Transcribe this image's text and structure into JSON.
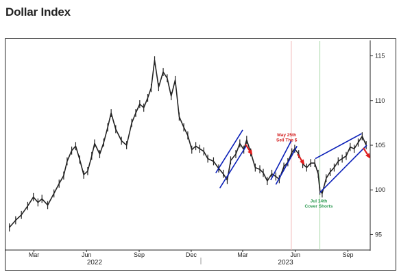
{
  "page": {
    "title": "Dollar Index"
  },
  "chart_data": {
    "type": "line",
    "title": "Dollar Index",
    "xlabel": "",
    "ylabel": "",
    "ylim": [
      93.5,
      116.5
    ],
    "xlim": [
      "2022-01-15",
      "2023-10-10"
    ],
    "yticks": [
      95,
      100,
      105,
      110,
      115
    ],
    "xticks": [
      {
        "date": "2022-03-01",
        "label": "Mar"
      },
      {
        "date": "2022-06-01",
        "label": "Jun"
      },
      {
        "date": "2022-09-01",
        "label": "Sep"
      },
      {
        "date": "2022-12-01",
        "label": "Dec"
      },
      {
        "date": "2023-03-01",
        "label": "Mar"
      },
      {
        "date": "2023-06-01",
        "label": "Jun"
      },
      {
        "date": "2023-09-01",
        "label": "Sep"
      }
    ],
    "year_labels": [
      {
        "date": "2022-06-15",
        "label": "2022"
      },
      {
        "date": "2023-05-15",
        "label": "2023"
      }
    ],
    "grid": false,
    "axis_side": "right",
    "series": [
      {
        "color": "#222222",
        "points": [
          [
            "2022-01-17",
            95.8
          ],
          [
            "2022-01-28",
            96.6
          ],
          [
            "2022-02-07",
            97.2
          ],
          [
            "2022-02-18",
            98.2
          ],
          [
            "2022-02-28",
            99.2
          ],
          [
            "2022-03-08",
            98.6
          ],
          [
            "2022-03-15",
            99.0
          ],
          [
            "2022-03-25",
            98.3
          ],
          [
            "2022-04-05",
            99.6
          ],
          [
            "2022-04-14",
            100.7
          ],
          [
            "2022-04-22",
            101.6
          ],
          [
            "2022-04-28",
            103.2
          ],
          [
            "2022-05-06",
            104.4
          ],
          [
            "2022-05-13",
            104.9
          ],
          [
            "2022-05-20",
            103.4
          ],
          [
            "2022-05-27",
            101.7
          ],
          [
            "2022-06-03",
            102.1
          ],
          [
            "2022-06-10",
            103.8
          ],
          [
            "2022-06-15",
            105.2
          ],
          [
            "2022-06-24",
            104.0
          ],
          [
            "2022-07-01",
            105.3
          ],
          [
            "2022-07-08",
            107.0
          ],
          [
            "2022-07-14",
            108.6
          ],
          [
            "2022-07-22",
            106.8
          ],
          [
            "2022-08-01",
            105.5
          ],
          [
            "2022-08-10",
            105.0
          ],
          [
            "2022-08-19",
            107.5
          ],
          [
            "2022-08-26",
            108.6
          ],
          [
            "2022-09-02",
            109.6
          ],
          [
            "2022-09-09",
            109.2
          ],
          [
            "2022-09-16",
            110.3
          ],
          [
            "2022-09-22",
            111.4
          ],
          [
            "2022-09-28",
            114.5
          ],
          [
            "2022-10-05",
            111.5
          ],
          [
            "2022-10-13",
            113.2
          ],
          [
            "2022-10-20",
            112.5
          ],
          [
            "2022-10-27",
            110.5
          ],
          [
            "2022-11-03",
            112.3
          ],
          [
            "2022-11-10",
            108.2
          ],
          [
            "2022-11-18",
            107.0
          ],
          [
            "2022-11-25",
            106.1
          ],
          [
            "2022-12-02",
            104.5
          ],
          [
            "2022-12-09",
            104.9
          ],
          [
            "2022-12-16",
            104.6
          ],
          [
            "2022-12-23",
            104.3
          ],
          [
            "2022-12-30",
            103.5
          ],
          [
            "2023-01-09",
            103.2
          ],
          [
            "2023-01-18",
            102.4
          ],
          [
            "2023-01-26",
            101.8
          ],
          [
            "2023-02-02",
            101.1
          ],
          [
            "2023-02-08",
            103.3
          ],
          [
            "2023-02-17",
            104.0
          ],
          [
            "2023-02-24",
            105.2
          ],
          [
            "2023-03-03",
            104.5
          ],
          [
            "2023-03-08",
            105.6
          ],
          [
            "2023-03-15",
            104.2
          ],
          [
            "2023-03-23",
            102.5
          ],
          [
            "2023-03-31",
            102.3
          ],
          [
            "2023-04-06",
            101.9
          ],
          [
            "2023-04-13",
            101.0
          ],
          [
            "2023-04-21",
            101.8
          ],
          [
            "2023-04-28",
            101.5
          ],
          [
            "2023-05-04",
            101.2
          ],
          [
            "2023-05-12",
            102.6
          ],
          [
            "2023-05-19",
            103.1
          ],
          [
            "2023-05-26",
            104.2
          ],
          [
            "2023-05-31",
            104.6
          ],
          [
            "2023-06-07",
            104.0
          ],
          [
            "2023-06-14",
            102.9
          ],
          [
            "2023-06-21",
            102.5
          ],
          [
            "2023-06-28",
            103.0
          ],
          [
            "2023-07-05",
            103.0
          ],
          [
            "2023-07-11",
            101.8
          ],
          [
            "2023-07-14",
            99.9
          ],
          [
            "2023-07-18",
            99.6
          ],
          [
            "2023-07-25",
            101.3
          ],
          [
            "2023-08-01",
            102.0
          ],
          [
            "2023-08-08",
            102.5
          ],
          [
            "2023-08-15",
            103.2
          ],
          [
            "2023-08-22",
            103.5
          ],
          [
            "2023-08-29",
            103.8
          ],
          [
            "2023-09-05",
            104.8
          ],
          [
            "2023-09-12",
            104.6
          ],
          [
            "2023-09-19",
            105.3
          ],
          [
            "2023-09-26",
            106.0
          ],
          [
            "2023-10-03",
            105.0
          ]
        ]
      }
    ],
    "channels": [
      {
        "color": "#0a1fb8",
        "lines": [
          [
            [
              "2023-01-13",
              101.9
            ],
            [
              "2023-03-01",
              106.7
            ]
          ],
          [
            [
              "2023-01-20",
              100.2
            ],
            [
              "2023-03-08",
              105.0
            ]
          ]
        ]
      },
      {
        "color": "#0a1fb8",
        "lines": [
          [
            [
              "2023-04-19",
              101.1
            ],
            [
              "2023-05-25",
              105.5
            ]
          ],
          [
            [
              "2023-04-28",
              100.6
            ],
            [
              "2023-06-04",
              104.9
            ]
          ]
        ]
      },
      {
        "color": "#0a1fb8",
        "lines": [
          [
            [
              "2023-07-06",
              103.5
            ],
            [
              "2023-09-25",
              106.3
            ]
          ],
          [
            [
              "2023-07-14",
              99.7
            ],
            [
              "2023-10-04",
              105.0
            ]
          ]
        ]
      }
    ],
    "markers": [
      {
        "date": "2023-05-25",
        "color": "#f2b8b8"
      },
      {
        "date": "2023-07-14",
        "color": "#a8d8a8"
      }
    ],
    "arrows": [
      {
        "from": [
          "2023-03-06",
          105.1
        ],
        "to": [
          "2023-03-17",
          104.0
        ],
        "color": "#e11d1d"
      },
      {
        "from": [
          "2023-06-05",
          104.0
        ],
        "to": [
          "2023-06-16",
          102.9
        ],
        "color": "#e11d1d"
      },
      {
        "from": [
          "2023-09-28",
          104.7
        ],
        "to": [
          "2023-10-09",
          103.6
        ],
        "color": "#e11d1d"
      }
    ],
    "annotations": [
      {
        "lines": [
          "May 25th",
          "Sell The $"
        ],
        "date": "2023-05-17",
        "value": 106.0,
        "color": "#d21c1c"
      },
      {
        "lines": [
          "Jul 14th",
          "Cover Shorts"
        ],
        "date": "2023-07-12",
        "value": 98.6,
        "color": "#2d9a52"
      }
    ]
  }
}
